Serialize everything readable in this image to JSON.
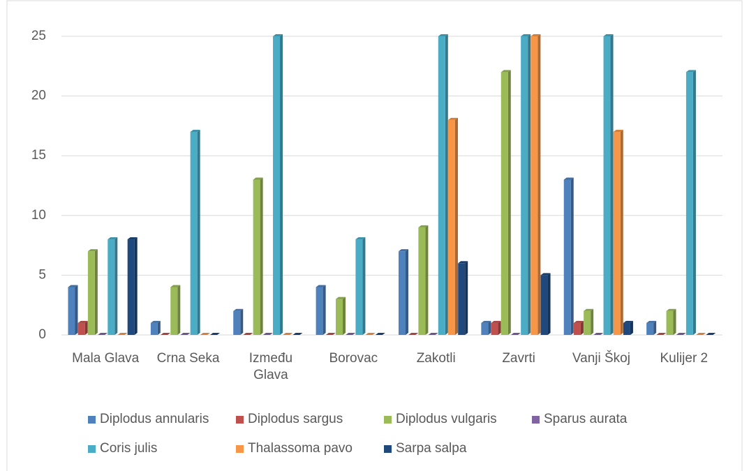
{
  "chart_data": {
    "type": "bar",
    "categories": [
      "Mala Glava",
      "Crna Seka",
      "Između Glava",
      "Borovac",
      "Zakotli",
      "Zavrti",
      "Vanji Škoj",
      "Kulijer 2"
    ],
    "series": [
      {
        "name": "Diplodus annularis",
        "color": "#4f81bd",
        "values": [
          4,
          1,
          2,
          4,
          7,
          1,
          13,
          1
        ]
      },
      {
        "name": "Diplodus sargus",
        "color": "#c0504d",
        "values": [
          1,
          0,
          0,
          0,
          0,
          1,
          1,
          0
        ]
      },
      {
        "name": "Diplodus vulgaris",
        "color": "#9bbb59",
        "values": [
          7,
          4,
          13,
          3,
          9,
          22,
          2,
          2
        ]
      },
      {
        "name": "Sparus aurata",
        "color": "#8064a2",
        "values": [
          0,
          0,
          0,
          0,
          0,
          0,
          0,
          0
        ]
      },
      {
        "name": "Coris julis",
        "color": "#4bacc6",
        "values": [
          8,
          17,
          25,
          8,
          25,
          25,
          25,
          22
        ]
      },
      {
        "name": "Thalassoma pavo",
        "color": "#f79646",
        "values": [
          0,
          0,
          0,
          0,
          18,
          25,
          17,
          0
        ]
      },
      {
        "name": "Sarpa salpa",
        "color": "#1f497d",
        "values": [
          8,
          0,
          0,
          0,
          6,
          5,
          1,
          0
        ]
      }
    ],
    "ylim": [
      0,
      25
    ],
    "yticks": [
      0,
      5,
      10,
      15,
      20,
      25
    ],
    "grid": true,
    "legend": "bottom"
  }
}
